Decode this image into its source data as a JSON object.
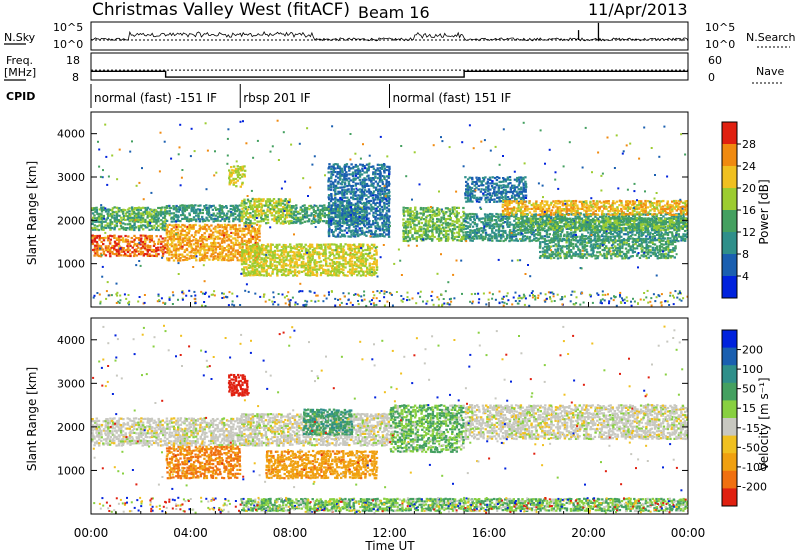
{
  "header": {
    "title": "Christmas Valley West (fitACF)",
    "beam": "Beam 16",
    "date": "11/Apr/2013"
  },
  "top_panels": {
    "nsky_label": "N.Sky",
    "nsearch_label": "N.Search",
    "noise_ticks": [
      "10^5",
      "10^0"
    ],
    "freq_label": "Freq.",
    "freq_unit": "[MHz]",
    "freq_ticks": [
      18,
      8
    ],
    "freq_range": [
      8,
      18
    ],
    "nave_label": "Nave",
    "nave_ticks": [
      60,
      0
    ],
    "nave_range": [
      0,
      60
    ],
    "cpid_label": "CPID",
    "freq_steps": [
      {
        "t0": 0,
        "t1": 3.0,
        "mhz": 11.2
      },
      {
        "t0": 3.0,
        "t1": 15.0,
        "mhz": 9.1
      },
      {
        "t0": 15.0,
        "t1": 24,
        "mhz": 11.2
      }
    ],
    "nave_level": 22,
    "noise_spikes": [
      {
        "t": 19.6,
        "v": 0.55
      },
      {
        "t": 20.4,
        "v": 0.95
      }
    ],
    "cpid_segments": [
      {
        "start": 0,
        "end": 6.0,
        "label": "normal (fast) -151 IF"
      },
      {
        "start": 6.0,
        "end": 12.0,
        "label": "rbsp 201 IF"
      },
      {
        "start": 12.0,
        "end": 24,
        "label": "normal (fast) 151 IF"
      }
    ]
  },
  "chart_data": [
    {
      "type": "heatmap",
      "panel": "power",
      "ylabel": "Slant Range [km]",
      "yticks": [
        1000,
        2000,
        3000,
        4000
      ],
      "ylim": [
        0,
        4500
      ],
      "colorbar_label": "Power [dB]",
      "colorbar_ticks": [
        4,
        8,
        12,
        16,
        20,
        24,
        28
      ],
      "colorbar_range": [
        0,
        30
      ],
      "colors": [
        "#0022dd",
        "#1a5fb0",
        "#2f8f8a",
        "#44a060",
        "#9ccc30",
        "#f0c020",
        "#f08a10",
        "#e02010"
      ],
      "bands": [
        {
          "t0": 0.0,
          "t1": 3.0,
          "r0": 1150,
          "r1": 1650,
          "power": 27
        },
        {
          "t0": 0.0,
          "t1": 3.0,
          "r0": 1750,
          "r1": 2300,
          "power": 13
        },
        {
          "t0": 3.0,
          "t1": 6.8,
          "r0": 1050,
          "r1": 1900,
          "power": 24
        },
        {
          "t0": 3.0,
          "t1": 6.0,
          "r0": 1950,
          "r1": 2350,
          "power": 10
        },
        {
          "t0": 5.5,
          "t1": 6.2,
          "r0": 2750,
          "r1": 3250,
          "power": 19
        },
        {
          "t0": 6.0,
          "t1": 8.0,
          "r0": 1900,
          "r1": 2500,
          "power": 17
        },
        {
          "t0": 6.0,
          "t1": 11.5,
          "r0": 700,
          "r1": 1450,
          "power": 19
        },
        {
          "t0": 8.0,
          "t1": 11.0,
          "r0": 1900,
          "r1": 2350,
          "power": 12
        },
        {
          "t0": 9.5,
          "t1": 12.0,
          "r0": 1600,
          "r1": 3300,
          "power": 6
        },
        {
          "t0": 12.5,
          "t1": 15.0,
          "r0": 1500,
          "r1": 2300,
          "power": 15
        },
        {
          "t0": 15.0,
          "t1": 17.5,
          "r0": 2400,
          "r1": 3000,
          "power": 6
        },
        {
          "t0": 15.0,
          "t1": 24.0,
          "r0": 1500,
          "r1": 2150,
          "power": 10
        },
        {
          "t0": 16.5,
          "t1": 24.0,
          "r0": 2100,
          "r1": 2450,
          "power": 22
        },
        {
          "t0": 17.0,
          "t1": 24.0,
          "r0": 1750,
          "r1": 2050,
          "power": 14
        },
        {
          "t0": 18.0,
          "t1": 23.5,
          "r0": 1100,
          "r1": 1550,
          "power": 12
        }
      ]
    },
    {
      "type": "heatmap",
      "panel": "velocity",
      "ylabel": "Slant Range [km]",
      "yticks": [
        1000,
        2000,
        3000,
        4000
      ],
      "ylim": [
        0,
        4500
      ],
      "colorbar_label": "Velocity [m s⁻¹]",
      "colorbar_ticks": [
        200,
        100,
        50,
        15,
        -15,
        -50,
        -100,
        -200
      ],
      "colors": [
        "#0022dd",
        "#1a5fb0",
        "#2f8f8a",
        "#44a060",
        "#88d040",
        "#c8c8c0",
        "#f0c020",
        "#f0a010",
        "#f07010",
        "#e02010"
      ],
      "bands": [
        {
          "t0": 0.0,
          "t1": 6.0,
          "r0": 1550,
          "r1": 2200,
          "vel": 0
        },
        {
          "t0": 3.0,
          "t1": 6.0,
          "r0": 800,
          "r1": 1550,
          "vel": -80
        },
        {
          "t0": 5.5,
          "t1": 6.3,
          "r0": 2700,
          "r1": 3200,
          "vel": -220
        },
        {
          "t0": 6.0,
          "t1": 12.0,
          "r0": 1550,
          "r1": 2300,
          "vel": 0
        },
        {
          "t0": 7.0,
          "t1": 11.5,
          "r0": 800,
          "r1": 1450,
          "vel": -60
        },
        {
          "t0": 8.5,
          "t1": 10.5,
          "r0": 1800,
          "r1": 2400,
          "vel": 70
        },
        {
          "t0": 12.0,
          "t1": 15.0,
          "r0": 1400,
          "r1": 2500,
          "vel": 30
        },
        {
          "t0": 15.0,
          "t1": 24.0,
          "r0": 1700,
          "r1": 2500,
          "vel": 0
        },
        {
          "t0": 6.0,
          "t1": 24.0,
          "r0": 50,
          "r1": 350,
          "vel": 30
        }
      ]
    }
  ],
  "xaxis": {
    "label": "Time UT",
    "ticks": [
      "00:00",
      "04:00",
      "08:00",
      "12:00",
      "16:00",
      "20:00",
      "00:00"
    ],
    "tick_hours": [
      0,
      4,
      8,
      12,
      16,
      20,
      24
    ]
  }
}
